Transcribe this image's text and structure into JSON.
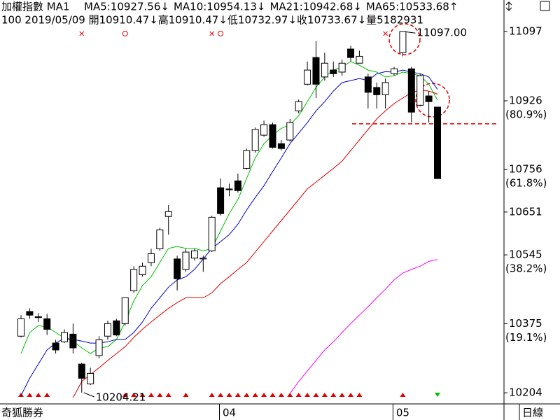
{
  "chart_data": {
    "type": "candlestick",
    "title": "加權指數 MA1",
    "info": "100 2019/05/09 開10910.47↓高10910.47↓低10732.97↓收10733.67↓量5182931",
    "footer_left": "奇狐勝券",
    "footer_right": "日線",
    "categories": [
      null,
      null,
      null,
      null,
      null,
      null,
      null,
      null,
      null,
      null,
      null,
      null,
      null,
      null,
      null,
      null,
      null,
      null,
      null,
      null,
      null,
      null,
      null,
      null,
      "04",
      null,
      null,
      null,
      null,
      null,
      null,
      null,
      null,
      null,
      null,
      null,
      null,
      null,
      null,
      null,
      null,
      null,
      null,
      null,
      "05",
      null,
      null,
      null,
      null
    ],
    "open": [
      10344,
      10405,
      10392,
      10387,
      10327,
      10330,
      10349,
      10275,
      10226,
      10296,
      10344,
      10382,
      10375,
      10456,
      10496,
      10526,
      10560,
      10640,
      10535,
      10509,
      10537,
      10535,
      10555,
      10711,
      10708,
      10728,
      10759,
      10803,
      10841,
      10867,
      10820,
      10829,
      10901,
      10967,
      11033,
      10985,
      11002,
      10997,
      11054,
      11019,
      10985,
      10959,
      10941,
      10993,
      11045,
      11005,
      10915,
      10938,
      10910.47
    ],
    "high": [
      10396,
      10413,
      10401,
      10399,
      10335,
      10361,
      10375,
      10278,
      10266,
      10344,
      10382,
      10387,
      10439,
      10517,
      10526,
      10560,
      10612,
      10668,
      10543,
      10560,
      10560,
      10543,
      10642,
      10734,
      10721,
      10746,
      10808,
      10860,
      10877,
      10872,
      10829,
      10881,
      10929,
      11023,
      11074,
      11045,
      11023,
      11028,
      11062,
      11050,
      10993,
      10971,
      10981,
      11010,
      11097,
      11010,
      10993,
      10950,
      10910.47
    ],
    "low": [
      10341,
      10387,
      10379,
      10347,
      10301,
      10327,
      10301,
      10204.21,
      10223,
      10289,
      10335,
      10344,
      10370,
      10451,
      10491,
      10517,
      10555,
      10595,
      10457,
      10503,
      10531,
      10503,
      10552,
      10642,
      10690,
      10699,
      10756,
      10798,
      10837,
      10808,
      10803,
      10825,
      10895,
      10964,
      10933,
      10976,
      10985,
      10988,
      11023,
      11019,
      10907,
      10907,
      10907,
      10988,
      11036,
      10872,
      10912,
      10872,
      10732.97
    ],
    "close": [
      10387,
      10396,
      10390,
      10361,
      10310,
      10353,
      10315,
      10240,
      10252,
      10335,
      10375,
      10347,
      10439,
      10509,
      10517,
      10548,
      10607,
      10652,
      10486,
      10552,
      10555,
      10537,
      10638,
      10647,
      10706,
      10704,
      10803,
      10855,
      10867,
      10811,
      10808,
      10872,
      10924,
      11002,
      10967,
      11019,
      10993,
      11019,
      11033,
      11036,
      10947,
      10941,
      10971,
      11005,
      11097,
      10898,
      10988,
      10924,
      10733.67
    ],
    "series": [
      {
        "label": "MA5:10927.56↓",
        "color": "#00c000",
        "values": [
          10301,
          10353,
          10370,
          10367,
          10353,
          10339,
          10332,
          10315,
          10301,
          10315,
          10318,
          10336,
          10379,
          10431,
          10469,
          10491,
          10526,
          10561,
          10566,
          10561,
          10561,
          10555,
          10561,
          10604,
          10647,
          10682,
          10734,
          10785,
          10820,
          10841,
          10858,
          10867,
          10889,
          10924,
          10959,
          10985,
          11002,
          11010,
          11023,
          11014,
          11002,
          10997,
          10985,
          10988,
          10997,
          10993,
          10988,
          10967,
          10927.56
        ]
      },
      {
        "label": "MA10:10954.13↓",
        "color": "#0000cc",
        "values": [
          10197,
          10240,
          10275,
          10310,
          10327,
          10339,
          10336,
          10332,
          10327,
          10327,
          10330,
          10336,
          10336,
          10353,
          10379,
          10413,
          10439,
          10465,
          10483,
          10491,
          10509,
          10535,
          10561,
          10578,
          10595,
          10621,
          10656,
          10687,
          10716,
          10751,
          10785,
          10820,
          10846,
          10872,
          10901,
          10924,
          10950,
          10971,
          10976,
          10981,
          10976,
          10993,
          10998,
          10997,
          11002,
          10997,
          10993,
          10985,
          10954.13
        ]
      },
      {
        "label": "MA21:10942.68↓",
        "color": "#e00000",
        "values": [
          null,
          null,
          null,
          null,
          null,
          null,
          10192,
          10232,
          10249,
          10266,
          10284,
          10301,
          10318,
          10341,
          10361,
          10379,
          10396,
          10413,
          10427,
          10439,
          10439,
          10439,
          10451,
          10474,
          10491,
          10509,
          10526,
          10552,
          10578,
          10604,
          10630,
          10656,
          10682,
          10708,
          10725,
          10742,
          10759,
          10777,
          10803,
          10829,
          10855,
          10881,
          10901,
          10919,
          10933,
          10946,
          10953,
          10950,
          10942.68
        ]
      },
      {
        "label": "MA65:10533.68↑",
        "color": "#ff00ff",
        "values": [
          null,
          null,
          null,
          null,
          null,
          null,
          null,
          null,
          null,
          null,
          null,
          null,
          null,
          null,
          null,
          null,
          null,
          null,
          null,
          null,
          null,
          null,
          null,
          null,
          null,
          null,
          null,
          null,
          null,
          null,
          null,
          10202,
          10232,
          10258,
          10284,
          10310,
          10330,
          10353,
          10375,
          10396,
          10417,
          10439,
          10460,
          10483,
          10500,
          10509,
          10517,
          10529,
          10533.68
        ]
      }
    ],
    "ylim": [
      10180,
      11106
    ],
    "yticks": [
      10204,
      10375,
      10545,
      10651,
      10756,
      10926,
      11097
    ],
    "ytick_notes": [
      {
        "value": 10926,
        "label": "(80.9%)"
      },
      {
        "value": 10756,
        "label": "(61.8%)"
      },
      {
        "value": 10545,
        "label": "(38.2%)"
      },
      {
        "value": 10375,
        "label": "(19.1%)"
      }
    ],
    "annotations": [
      {
        "value": 11097,
        "label": "11097.00"
      },
      {
        "value": 10204.21,
        "label": "10204.21"
      }
    ],
    "hline": {
      "value": 10869,
      "color": "#e00000"
    },
    "up_color": "#ffffff",
    "down_color": "#000000"
  }
}
